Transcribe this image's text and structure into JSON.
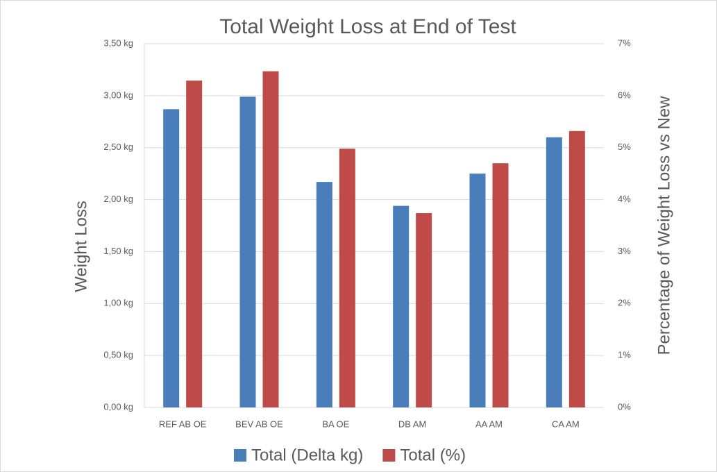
{
  "chart_data": {
    "type": "bar",
    "title": "Total Weight Loss at End of Test",
    "y_label": "Weight Loss",
    "y2_label": "Percentage of Weight Loss vs New",
    "categories": [
      "REF AB OE",
      "BEV AB OE",
      "BA OE",
      "DB AM",
      "AA AM",
      "CA AM"
    ],
    "series": [
      {
        "name": "Total (Delta kg)",
        "color": "#4a7ebb",
        "values": [
          2.87,
          2.99,
          2.17,
          1.94,
          2.25,
          2.6
        ]
      },
      {
        "name": "Total (%)",
        "color": "#be4b48",
        "axis": "y2",
        "values": [
          6.29,
          6.47,
          4.98,
          3.74,
          4.7,
          5.32
        ]
      }
    ],
    "ylim": [
      0,
      3.5
    ],
    "yticks": [
      {
        "value": 0,
        "label": "0,00 kg"
      },
      {
        "value": 0.5,
        "label": "0,50 kg"
      },
      {
        "value": 1,
        "label": "1,00 kg"
      },
      {
        "value": 1.5,
        "label": "1,50 kg"
      },
      {
        "value": 2,
        "label": "2,00 kg"
      },
      {
        "value": 2.5,
        "label": "2,50 kg"
      },
      {
        "value": 3,
        "label": "3,00 kg"
      },
      {
        "value": 3.5,
        "label": "3,50 kg"
      }
    ],
    "y2lim": [
      0,
      7
    ],
    "y2ticks": [
      {
        "value": 0,
        "label": "0%"
      },
      {
        "value": 1,
        "label": "1%"
      },
      {
        "value": 2,
        "label": "2%"
      },
      {
        "value": 3,
        "label": "3%"
      },
      {
        "value": 4,
        "label": "4%"
      },
      {
        "value": 5,
        "label": "5%"
      },
      {
        "value": 6,
        "label": "6%"
      },
      {
        "value": 7,
        "label": "7%"
      }
    ],
    "grid": true,
    "legend": "bottom"
  }
}
